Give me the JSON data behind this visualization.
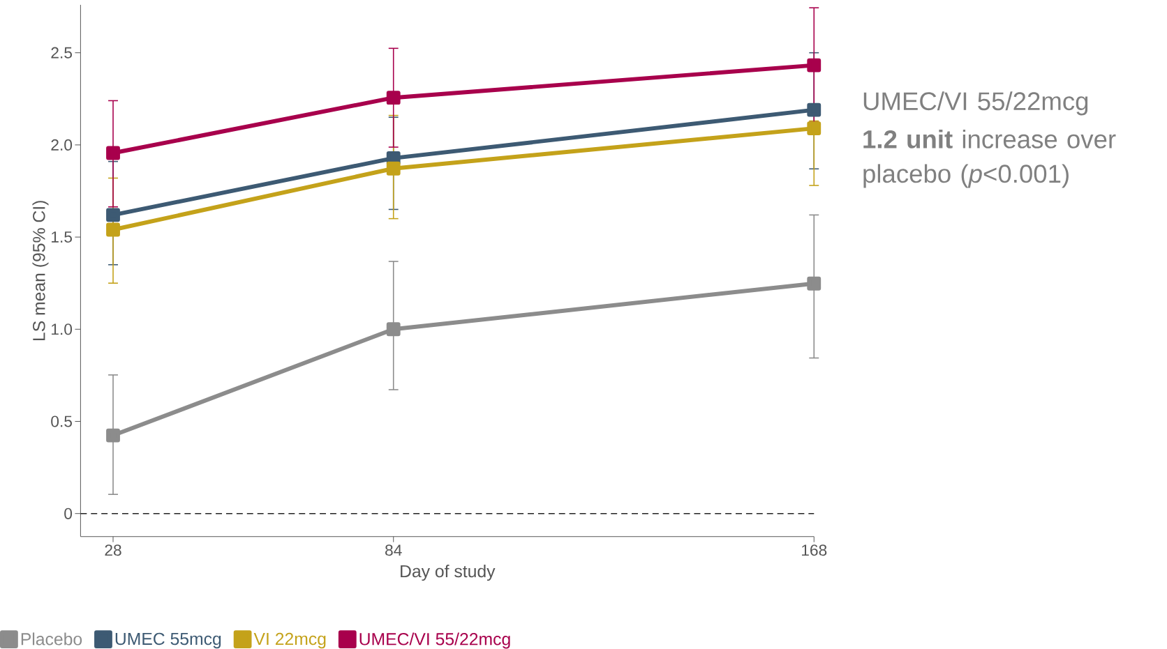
{
  "chart_data": {
    "type": "line",
    "xlabel": "Day of study",
    "ylabel": "LS mean (95% CI)",
    "x": [
      28,
      84,
      168
    ],
    "xlim": [
      21.5,
      168
    ],
    "xticks": [
      28,
      84,
      168
    ],
    "ylim": [
      -0.125,
      2.76
    ],
    "yticks": [
      0,
      0.5,
      {
        "value": 1.0,
        "label": "1.0"
      },
      1.5,
      {
        "value": 2.0,
        "label": "2.0"
      },
      2.5
    ],
    "marker": "square",
    "line_style": "solid",
    "legend": "bottom",
    "grid": false,
    "ref_lines": [
      {
        "axis": "y",
        "value": 0,
        "color": "#222222",
        "line_style": "dashed"
      }
    ],
    "annotations": [
      "UMEC/VI 55/22mcg",
      "**1.2 unit** increase over placebo (*p*<0.001)"
    ],
    "series": [
      {
        "name": "Placebo",
        "color": "#8c8c8c",
        "values": [
          0.424,
          1.0,
          1.248
        ],
        "errors": [
          [
            0.104,
            0.752
          ],
          [
            0.672,
            1.368
          ],
          [
            0.844,
            1.62
          ]
        ]
      },
      {
        "name": "UMEC 55mcg",
        "color": "#3d5a73",
        "values": [
          1.62,
          1.928,
          2.19
        ],
        "errors": [
          [
            1.35,
            1.91
          ],
          [
            1.65,
            2.15
          ],
          [
            1.87,
            2.5
          ]
        ]
      },
      {
        "name": "VI 22mcg",
        "color": "#c4a21a",
        "values": [
          1.54,
          1.872,
          2.09
        ],
        "errors": [
          [
            1.25,
            1.82
          ],
          [
            1.6,
            2.16
          ],
          [
            1.78,
            2.13
          ]
        ]
      },
      {
        "name": "UMEC/VI 55/22mcg",
        "color": "#a8004c",
        "values": [
          1.956,
          2.256,
          2.432
        ],
        "errors": [
          [
            1.664,
            2.24
          ],
          [
            1.988,
            2.524
          ],
          [
            2.124,
            2.744
          ]
        ]
      }
    ]
  }
}
